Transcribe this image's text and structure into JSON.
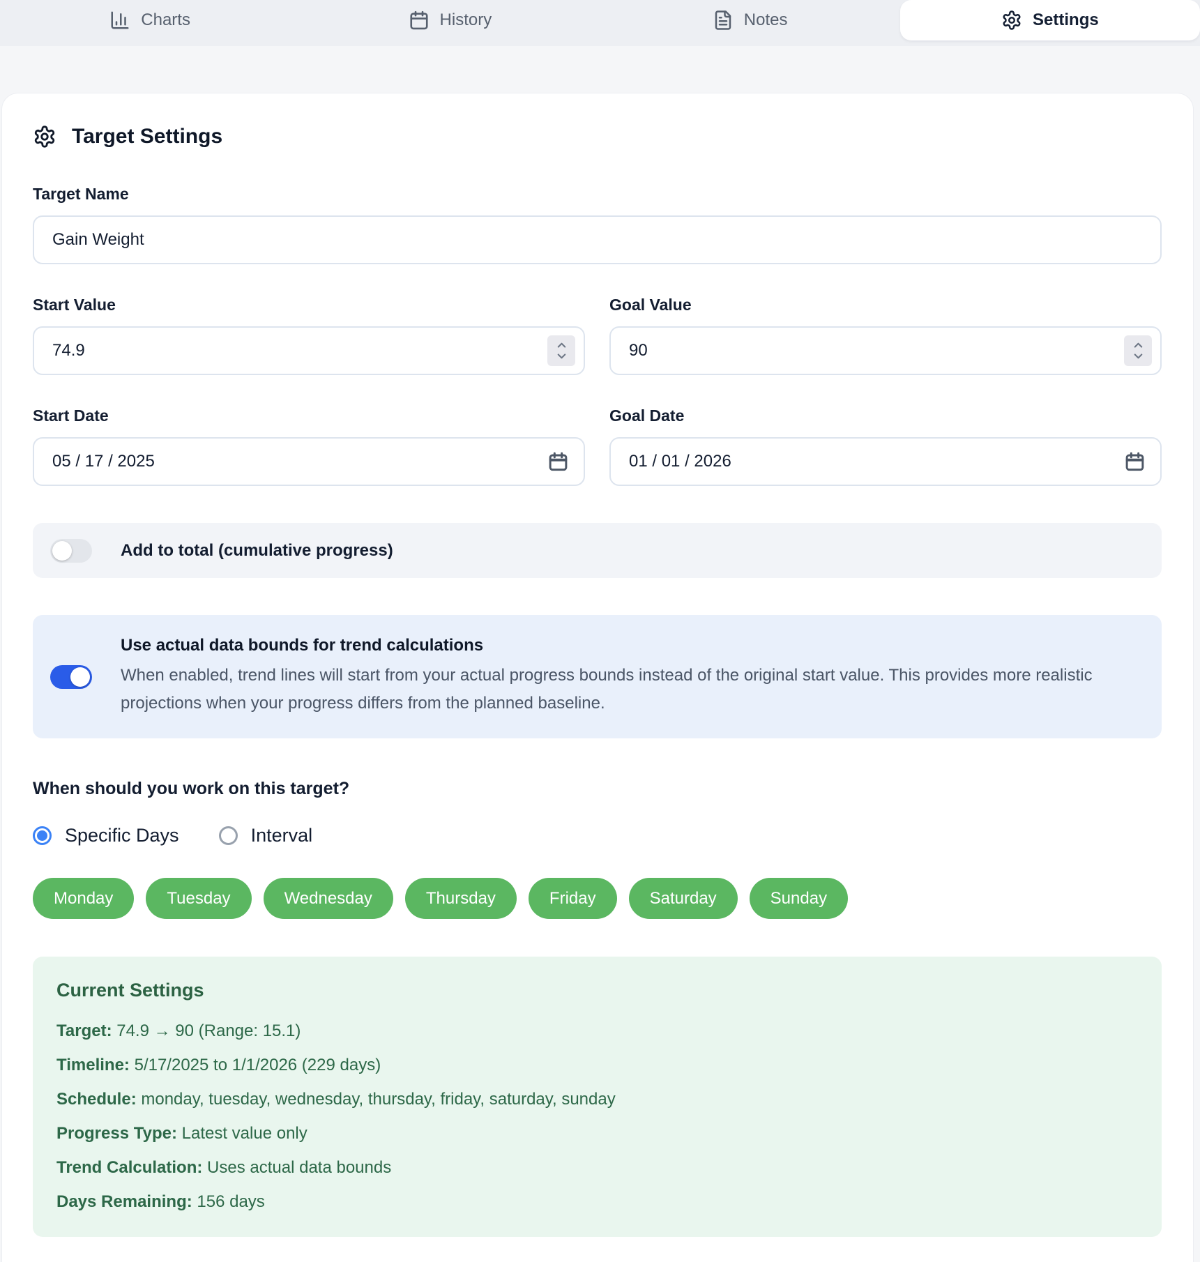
{
  "tabs": [
    {
      "label": "Charts",
      "icon": "bar-chart-icon",
      "active": false
    },
    {
      "label": "History",
      "icon": "calendar-icon",
      "active": false
    },
    {
      "label": "Notes",
      "icon": "file-text-icon",
      "active": false
    },
    {
      "label": "Settings",
      "icon": "gear-icon",
      "active": true
    }
  ],
  "settings_panel": {
    "title": "Target Settings",
    "target_name": {
      "label": "Target Name",
      "value": "Gain Weight"
    },
    "start_value": {
      "label": "Start Value",
      "value": "74.9"
    },
    "goal_value": {
      "label": "Goal Value",
      "value": "90"
    },
    "start_date": {
      "label": "Start Date",
      "value": "05 / 17 / 2025"
    },
    "goal_date": {
      "label": "Goal Date",
      "value": "01 / 01 / 2026"
    },
    "cumulative_toggle": {
      "label": "Add to total (cumulative progress)",
      "enabled": false
    },
    "data_bounds_toggle": {
      "title": "Use actual data bounds for trend calculations",
      "description": "When enabled, trend lines will start from your actual progress bounds instead of the original start value. This provides more realistic projections when your progress differs from the planned baseline.",
      "enabled": true
    },
    "schedule": {
      "question": "When should you work on this target?",
      "mode_options": [
        {
          "label": "Specific Days",
          "selected": true
        },
        {
          "label": "Interval",
          "selected": false
        }
      ],
      "days": [
        "Monday",
        "Tuesday",
        "Wednesday",
        "Thursday",
        "Friday",
        "Saturday",
        "Sunday"
      ]
    },
    "current_settings": {
      "title": "Current Settings",
      "items": [
        {
          "label": "Target:",
          "value": "74.9 → 90 (Range: 15.1)"
        },
        {
          "label": "Timeline:",
          "value": "5/17/2025 to 1/1/2026 (229 days)"
        },
        {
          "label": "Schedule:",
          "value": "monday, tuesday, wednesday, thursday, friday, saturday, sunday"
        },
        {
          "label": "Progress Type:",
          "value": "Latest value only"
        },
        {
          "label": "Trend Calculation:",
          "value": "Uses actual data bounds"
        },
        {
          "label": "Days Remaining:",
          "value": "156 days"
        }
      ]
    }
  },
  "colors": {
    "accent_blue": "#2a5ce8",
    "radio_blue": "#3b82f6",
    "day_pill_green": "#5bb761",
    "summary_bg": "#e9f6ee",
    "summary_text": "#2d6848",
    "info_bg": "#e9f0fb",
    "page_bg": "#f5f6f8",
    "tabbar_bg": "#edeff3",
    "card_bg": "#ffffff"
  }
}
